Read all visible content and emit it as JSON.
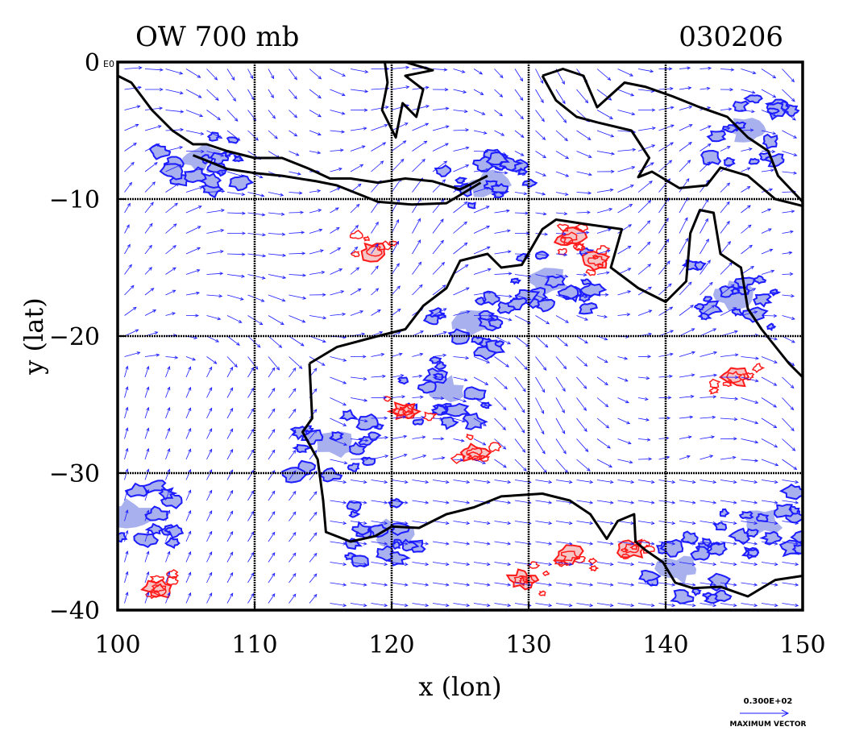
{
  "header": {
    "left_title": "OW 700 mb",
    "right_title": "030206"
  },
  "axes": {
    "x_label": "x (lon)",
    "y_label": "y (lat)",
    "x_ticks": [
      "100",
      "110",
      "120",
      "130",
      "140",
      "150"
    ],
    "y_ticks": [
      "0",
      "−10",
      "−20",
      "−30",
      "−40"
    ],
    "origin_suffix": "E0"
  },
  "colors": {
    "background": "#ffffff",
    "vector": "#1a1aff",
    "negative_contour": "#1c1cff",
    "negative_fill": "#a9b0ee",
    "positive_contour": "#ff1a1a",
    "positive_fill": "#f5c6c6",
    "coast": "#000000",
    "grid": "#000000"
  },
  "legend": {
    "max_vector_value": "0.300E+02",
    "max_vector_label": "MAXIMUM VECTOR"
  },
  "chart_data": {
    "type": "map",
    "projection": "lon-lat",
    "xlim": [
      100,
      150
    ],
    "ylim": [
      -40,
      0
    ],
    "x_grid": [
      110,
      120,
      130,
      140
    ],
    "y_grid": [
      -10,
      -20,
      -30
    ],
    "grid": true,
    "field": "Okubo-Weiss parameter",
    "level_mb": 700,
    "date": "030206",
    "overlay": "wind vectors",
    "max_vector": 30.0,
    "positive_regions": [
      {
        "lon": 118.7,
        "lat": -13.8
      },
      {
        "lon": 133.0,
        "lat": -12.8
      },
      {
        "lon": 121.0,
        "lat": -25.5
      },
      {
        "lon": 126.0,
        "lat": -28.5
      },
      {
        "lon": 133.0,
        "lat": -36.0
      },
      {
        "lon": 129.5,
        "lat": -37.8
      },
      {
        "lon": 103.0,
        "lat": -38.5
      },
      {
        "lon": 135.0,
        "lat": -14.5
      },
      {
        "lon": 137.5,
        "lat": -35.5
      },
      {
        "lon": 145.0,
        "lat": -23.0
      }
    ],
    "negative_regions": [
      {
        "lon": 131.5,
        "lat": -16.0
      },
      {
        "lon": 126.0,
        "lat": -19.0
      },
      {
        "lon": 120.0,
        "lat": -34.5
      },
      {
        "lon": 116.0,
        "lat": -28.0
      },
      {
        "lon": 146.0,
        "lat": -5.0
      },
      {
        "lon": 106.0,
        "lat": -7.0
      },
      {
        "lon": 141.0,
        "lat": -37.0
      },
      {
        "lon": 127.0,
        "lat": -9.0
      },
      {
        "lon": 147.0,
        "lat": -33.5
      },
      {
        "lon": 145.0,
        "lat": -17.0
      },
      {
        "lon": 101.0,
        "lat": -33.0
      },
      {
        "lon": 124.0,
        "lat": -24.0
      }
    ]
  }
}
